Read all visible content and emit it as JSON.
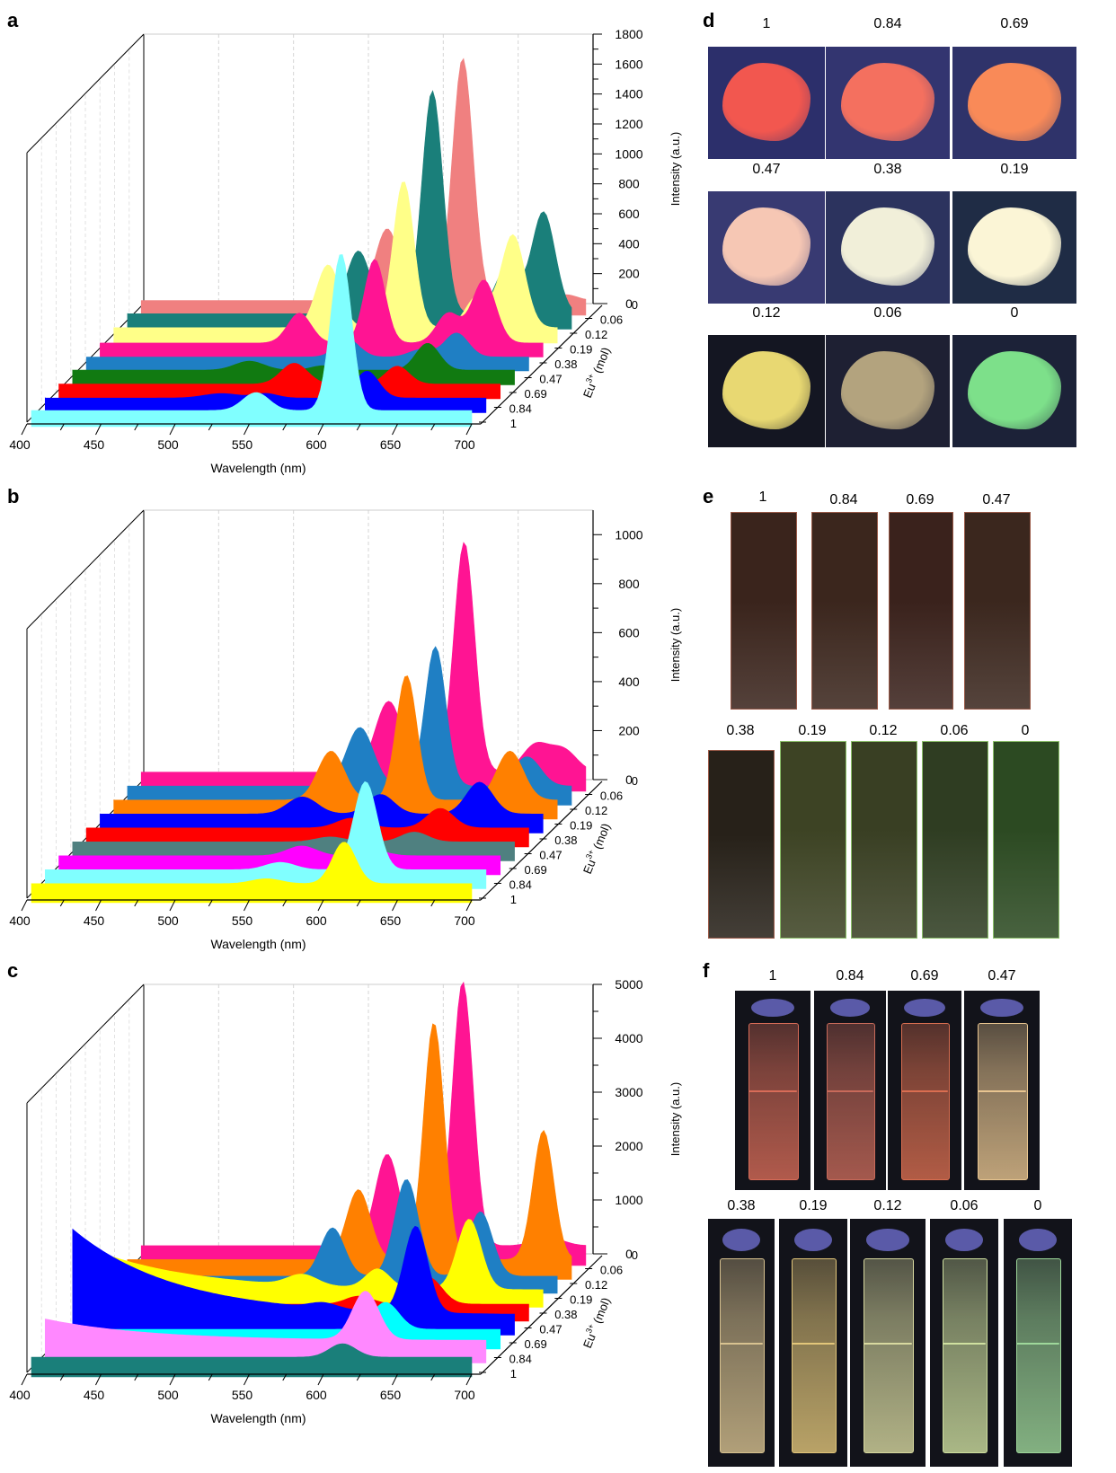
{
  "panels": {
    "a": "a",
    "b": "b",
    "c": "c",
    "d": "d",
    "e": "e",
    "f": "f"
  },
  "chart_data": [
    {
      "id": "a",
      "type": "area",
      "xlabel": "Wavelength (nm)",
      "ylabel": "Intensity (a.u.)",
      "zlabel": "Eu3+ (mol)",
      "zlabel_main": "Eu",
      "zlabel_sup": "3+",
      "zlabel_unit": " (mol)",
      "xlim": [
        400,
        700
      ],
      "xticks": [
        400,
        450,
        500,
        550,
        600,
        650,
        700
      ],
      "ylim": [
        0,
        1800
      ],
      "yticks": [
        0,
        200,
        400,
        600,
        800,
        1000,
        1200,
        1400,
        1600,
        1800
      ],
      "series": [
        {
          "name": "0",
          "color": "#f08080",
          "baseline": 20,
          "peaks": [
            [
              566,
              480,
              8
            ],
            [
              617,
              1620,
              7
            ],
            [
              686,
              40,
              8
            ]
          ]
        },
        {
          "name": "0.06",
          "color": "#1a7f7a",
          "baseline": 25,
          "peaks": [
            [
              556,
              420,
              8
            ],
            [
              606,
              1490,
              7
            ],
            [
              656,
              300,
              8
            ],
            [
              681,
              680,
              8
            ]
          ]
        },
        {
          "name": "0.12",
          "color": "#ffff88",
          "baseline": 25,
          "peaks": [
            [
              545,
              420,
              8
            ],
            [
              596,
              980,
              7
            ],
            [
              646,
              210,
              8
            ],
            [
              670,
              620,
              8
            ]
          ]
        },
        {
          "name": "0.19",
          "color": "#ff1493",
          "baseline": 15,
          "peaks": [
            [
              535,
              200,
              8
            ],
            [
              586,
              560,
              7
            ],
            [
              636,
              200,
              8
            ],
            [
              660,
              420,
              8
            ]
          ]
        },
        {
          "name": "0.38",
          "color": "#1f7fc4",
          "baseline": 15,
          "peaks": [
            [
              577,
              120,
              8
            ],
            [
              627,
              50,
              8
            ],
            [
              651,
              160,
              8
            ]
          ]
        },
        {
          "name": "0.47",
          "color": "#117a11",
          "baseline": 20,
          "peaks": [
            [
              520,
              60,
              10
            ],
            [
              570,
              30,
              8
            ],
            [
              641,
              180,
              8
            ]
          ]
        },
        {
          "name": "0.69",
          "color": "#ff0000",
          "baseline": 20,
          "peaks": [
            [
              560,
              140,
              9
            ],
            [
              630,
              120,
              8
            ]
          ]
        },
        {
          "name": "0.84",
          "color": "#0000ff",
          "baseline": 20,
          "peaks": [
            [
              520,
              30,
              12
            ],
            [
              550,
              30,
              8
            ],
            [
              619,
              180,
              8
            ]
          ]
        },
        {
          "name": "1",
          "color": "#80ffff",
          "baseline": 30,
          "peaks": [
            [
              553,
              120,
              9
            ],
            [
              611,
              1050,
              7
            ]
          ]
        }
      ]
    },
    {
      "id": "b",
      "type": "area",
      "xlabel": "Wavelength (nm)",
      "ylabel": "Intensity (a.u.)",
      "zlabel": "Eu3+ (mol)",
      "zlabel_main": "Eu",
      "zlabel_sup": "3+",
      "zlabel_unit": " (mol)",
      "xlim": [
        400,
        700
      ],
      "xticks": [
        400,
        450,
        500,
        550,
        600,
        650,
        700
      ],
      "ylim": [
        0,
        1100
      ],
      "yticks": [
        0,
        200,
        400,
        600,
        800,
        1000
      ],
      "series": [
        {
          "name": "0",
          "color": "#ff1493",
          "baseline": 30,
          "peaks": [
            [
              567,
              290,
              9
            ],
            [
              618,
              940,
              7
            ],
            [
              666,
              110,
              9
            ],
            [
              685,
              90,
              9
            ]
          ]
        },
        {
          "name": "0.06",
          "color": "#1f7fc4",
          "baseline": 30,
          "peaks": [
            [
              557,
              240,
              9
            ],
            [
              608,
              570,
              7
            ],
            [
              670,
              120,
              9
            ]
          ]
        },
        {
          "name": "0.12",
          "color": "#ff8000",
          "baseline": 30,
          "peaks": [
            [
              547,
              200,
              9
            ],
            [
              598,
              510,
              7
            ],
            [
              668,
              200,
              9
            ]
          ]
        },
        {
          "name": "0.19",
          "color": "#0000ff",
          "baseline": 30,
          "peaks": [
            [
              537,
              70,
              10
            ],
            [
              590,
              80,
              9
            ],
            [
              657,
              130,
              9
            ]
          ]
        },
        {
          "name": "0.38",
          "color": "#ff0000",
          "baseline": 30,
          "peaks": [
            [
              580,
              40,
              10
            ],
            [
              640,
              80,
              9
            ]
          ]
        },
        {
          "name": "0.47",
          "color": "#4f8080",
          "baseline": 30,
          "peaks": [
            [
              575,
              20,
              10
            ],
            [
              632,
              40,
              9
            ]
          ]
        },
        {
          "name": "0.69",
          "color": "#ff00ff",
          "baseline": 30,
          "peaks": [
            [
              565,
              40,
              10
            ],
            [
              615,
              20,
              9
            ]
          ]
        },
        {
          "name": "0.84",
          "color": "#80ffff",
          "baseline": 30,
          "peaks": [
            [
              560,
              30,
              10
            ],
            [
              618,
              360,
              8
            ]
          ]
        },
        {
          "name": "1",
          "color": "#ffff00",
          "baseline": 30,
          "peaks": [
            [
              560,
              20,
              10
            ],
            [
              613,
              170,
              8
            ]
          ]
        }
      ]
    },
    {
      "id": "c",
      "type": "area",
      "xlabel": "Wavelength (nm)",
      "ylabel": "Intensity (a.u.)",
      "zlabel": "Eu3+ (mol)",
      "zlabel_main": "Eu",
      "zlabel_sup": "3+",
      "zlabel_unit": " (mol)",
      "xlim": [
        400,
        700
      ],
      "xticks": [
        400,
        450,
        500,
        550,
        600,
        650,
        700
      ],
      "ylim": [
        0,
        5000
      ],
      "yticks": [
        0,
        1000,
        2000,
        3000,
        4000,
        5000
      ],
      "series": [
        {
          "name": "0",
          "color": "#ff1493",
          "baseline": 150,
          "peaks": [
            [
              566,
              1700,
              8
            ],
            [
              617,
              4900,
              7
            ],
            [
              675,
              150,
              10
            ]
          ]
        },
        {
          "name": "0.06",
          "color": "#ff8000",
          "baseline": 150,
          "peaks": [
            [
              556,
              1300,
              8
            ],
            [
              607,
              4400,
              7
            ],
            [
              681,
              2400,
              7
            ]
          ]
        },
        {
          "name": "0.12",
          "color": "#1f7fc4",
          "baseline": 100,
          "peaks": [
            [
              548,
              900,
              8
            ],
            [
              598,
              1800,
              8
            ],
            [
              648,
              1200,
              8
            ]
          ]
        },
        {
          "name": "0.19",
          "color": "#ffff00",
          "baseline": 100,
          "peaks": [
            [
              537,
              200,
              10
            ],
            [
              588,
              350,
              8
            ],
            [
              650,
              1300,
              8
            ]
          ]
        },
        {
          "name": "0.38",
          "color": "#ff0000",
          "baseline": 100,
          "peaks": [
            [
              585,
              150,
              9
            ],
            [
              632,
              500,
              9
            ]
          ]
        },
        {
          "name": "0.47",
          "color": "#0000ff",
          "baseline": 150,
          "peaks": [
            [
              570,
              100,
              9
            ],
            [
              633,
              1600,
              8
            ]
          ]
        },
        {
          "name": "0.69",
          "color": "#00ffff",
          "baseline": 150,
          "peaks": [
            [
              622,
              500,
              9
            ]
          ]
        },
        {
          "name": "0.84",
          "color": "#ff88ff",
          "baseline": 200,
          "peaks": [
            [
              618,
              900,
              9
            ]
          ]
        },
        {
          "name": "1",
          "color": "#1a7f7a",
          "baseline": 150,
          "peaks": [
            [
              612,
              250,
              9
            ]
          ]
        }
      ]
    }
  ],
  "panel_d": {
    "labels": [
      "1",
      "0.84",
      "0.69",
      "0.47",
      "0.38",
      "0.19",
      "0.12",
      "0.06",
      "0"
    ],
    "colors": [
      "#f2574f",
      "#f4705f",
      "#f98a58",
      "#f6c7b4",
      "#f1efd9",
      "#fbf5d6",
      "#e8d872",
      "#b3a37e",
      "#7de08a"
    ],
    "bg": [
      "#2c2f6b",
      "#333570",
      "#2f336a",
      "#383a72",
      "#2c335e",
      "#1f2c45",
      "#141622",
      "#1e2033",
      "#1c2238"
    ]
  },
  "panel_e": {
    "labels": [
      "1",
      "0.84",
      "0.69",
      "0.47",
      "0.38",
      "0.19",
      "0.12",
      "0.06",
      "0"
    ],
    "colors": [
      "#3a241c",
      "#3b261d",
      "#3a221c",
      "#3b271e",
      "#272119",
      "#3d4324",
      "#393f23",
      "#2f3d22",
      "#2c4a22"
    ]
  },
  "panel_f": {
    "labels": [
      "1",
      "0.84",
      "0.69",
      "0.47",
      "0.38",
      "0.19",
      "0.12",
      "0.06",
      "0"
    ],
    "colors": [
      "#d86c58",
      "#c86a5a",
      "#d96e50",
      "#e8c590",
      "#d8c290",
      "#e2c67a",
      "#d8d9a0",
      "#cfe0a0",
      "#9ed79a"
    ]
  }
}
